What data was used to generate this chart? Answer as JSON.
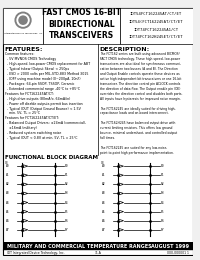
{
  "bg_color": "#f0f0f0",
  "border_color": "#000000",
  "header_bg": "#ffffff",
  "title_main": "FAST CMOS 16-BIT\nBIDIRECTIONAL\nTRANSCEIVERS",
  "part_numbers": [
    "IDT54FCT162245AT/CT/ET",
    "IDT54(FCT162245AT/CT/ET",
    "IDT74FCT162245A1/CT",
    "IDT74FCT162H245ET/CT/ET"
  ],
  "section_features": "FEATURES:",
  "section_description": "DESCRIPTION:",
  "features_text": "Common features:\n  – 5V MVNOS CMOS Technology\n  – High-speed, low-power CMOS replacement for\n    ABT functions\n  – Typical tskew (Output Skew) < 250ps\n  – ESD > 2000 volts per MIL-STD-883 Method 3015\n  – IOFF using machine model (0 ~ 200pA, 10 nF)\n  – Packages available: 64-pin SSOP, 56 mil pitch\n    TSSOP, 15.7 mil pitch TSSOP and 56 mil pitch Ceramic\n  – Extended commercial range of -40°C to +85°C\nFeatures for FCT162245AT/CT:\n  – High drive outputs (80mA/o, 64mA/in)\n  – Power of disable outputs permit bus insertion\n  – Typical IOUT (Output Ground Bounce) < 1.5V at\n    min. 5V, T_L = 25°C\nFeatures for FCT162245AT/CT/ET:\n  – Balanced Output Drivers: ±24mA (commercial),\n    ±16mA (military)\n  – Reduced system switching noise\n  – Typical IOUT (Output Ground Bounce) < 0.8V at\n    min. 5V, T_L = 25°C",
  "description_text": "The FCT162 series are built using advanced BICMOS/FACT CMOS technology. These high-speed, low-power transceivers are also ideal for synchronous communication between two busses (A and B). The Direction and Output Enable controls operate these devices as active high independent bit transceivers or one 16-bit transceiver. The direction control pin ACLOCK in the direction of data flow. The Output enable pin (OE) overrides the direction control and disables both ports. All inputs are designed with hysteresis for improved noise margin.\n\nThe FCT162245 are ideally suited for driving high-capacitance loads and on-board interconnect. The outputs are designed with power of disable capability to allow bus insertion to occur when used as totem-pole drivers.\n\nThe FCT162H245 have balanced output drive with current limiting resistors. This offers low ground bounce, minimal undershoot, and controlled output fall times - reducing the need for external series terminating resistors. The FCT162H245 are plugin replacements for the FCT162245 and ABT signals for totem-pole interface applications.\n\nThe FCT162245 are suited for any low-noise, point-to-point high performance implementation on a light load.",
  "functional_block_label": "FUNCTIONAL BLOCK DIAGRAM",
  "footer_left": "MILITARY AND COMMERCIAL TEMPERATURE RANGES",
  "footer_right": "AUGUST 1999",
  "footer_bottom_left": "IDT Integrated Device Technology, Inc.",
  "footer_bottom_center": "31-A",
  "footer_bottom_right": "000-000001\n1"
}
